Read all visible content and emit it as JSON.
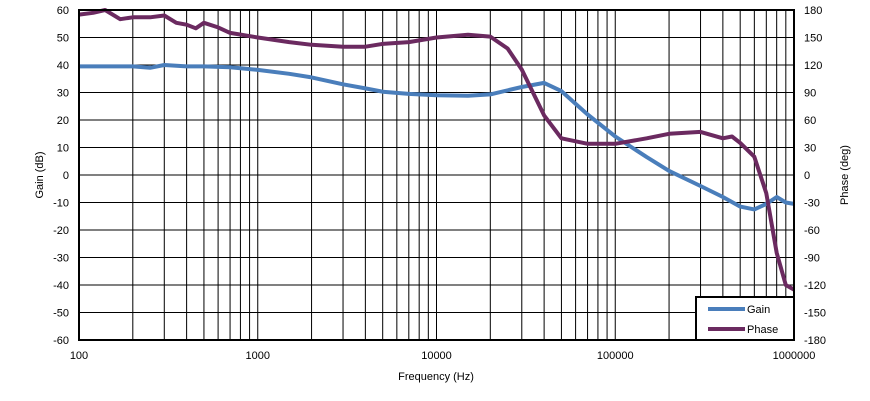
{
  "chart_data": {
    "type": "line",
    "title": "",
    "xlabel": "Frequency (Hz)",
    "ylabel": "Gain (dB)",
    "y2label": "Phase (deg)",
    "xscale": "log",
    "xlim": [
      100,
      1000000
    ],
    "ylim": [
      -60,
      60
    ],
    "y2lim": [
      -180,
      180
    ],
    "grid": true,
    "legend_position": "lower right",
    "x_ticks": [
      "100",
      "1000",
      "10000",
      "100000",
      "1000000"
    ],
    "y_ticks": [
      60,
      50,
      40,
      30,
      20,
      10,
      0,
      -10,
      -20,
      -30,
      -40,
      -50,
      -60
    ],
    "y2_ticks": [
      180,
      150,
      120,
      90,
      60,
      30,
      0,
      -30,
      -60,
      -90,
      -120,
      -150,
      -180
    ],
    "series": [
      {
        "name": "Gain",
        "axis": "left",
        "color": "#4a7ebb",
        "x": [
          100,
          150,
          200,
          250,
          300,
          400,
          500,
          700,
          1000,
          1500,
          2000,
          3000,
          4000,
          5000,
          7000,
          10000,
          15000,
          20000,
          30000,
          40000,
          50000,
          70000,
          100000,
          150000,
          200000,
          300000,
          400000,
          500000,
          600000,
          700000,
          800000,
          900000,
          1000000
        ],
        "values": [
          39.5,
          39.5,
          39.5,
          39,
          40,
          39.5,
          39.5,
          39.2,
          38.2,
          36.8,
          35.5,
          33,
          31.5,
          30.3,
          29.5,
          29,
          28.8,
          29.3,
          32,
          33.5,
          30.5,
          22,
          14,
          6.5,
          1.5,
          -4,
          -8,
          -11.5,
          -12.5,
          -10.5,
          -8,
          -10,
          -10.5
        ]
      },
      {
        "name": "Phase",
        "axis": "right",
        "color": "#6b2a60",
        "x": [
          100,
          120,
          140,
          170,
          200,
          250,
          300,
          350,
          400,
          450,
          500,
          600,
          700,
          1000,
          1500,
          2000,
          3000,
          4000,
          5000,
          7000,
          10000,
          15000,
          20000,
          25000,
          30000,
          40000,
          50000,
          70000,
          100000,
          150000,
          200000,
          300000,
          400000,
          450000,
          500000,
          600000,
          700000,
          800000,
          900000,
          1000000
        ],
        "values": [
          175,
          177,
          180,
          170,
          172,
          172,
          174,
          166,
          164,
          160,
          166,
          161,
          155,
          150,
          145,
          142,
          140,
          140,
          143,
          145,
          150,
          153,
          151,
          138,
          115,
          65,
          40,
          34,
          34,
          40,
          45,
          47,
          40,
          42,
          35,
          20,
          -20,
          -85,
          -120,
          -125
        ]
      }
    ]
  },
  "legend": {
    "items": [
      {
        "label": "Gain",
        "color": "#4a7ebb"
      },
      {
        "label": "Phase",
        "color": "#6b2a60"
      }
    ]
  },
  "axes": {
    "x_title": "Frequency (Hz)",
    "y_title": "Gain (dB)",
    "y2_title": "Phase (deg)"
  }
}
